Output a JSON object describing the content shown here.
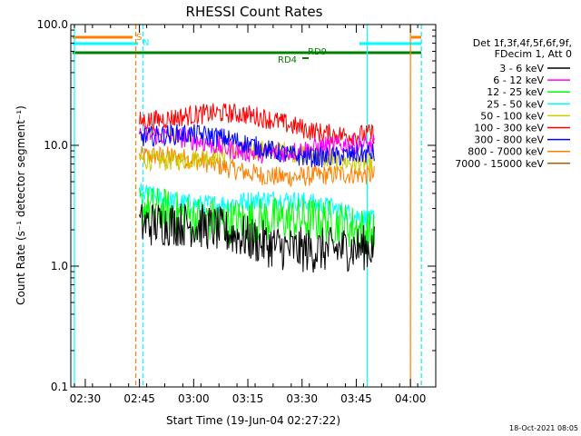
{
  "chart_data": {
    "type": "line",
    "title": "RHESSI Count Rates",
    "xlabel": "Start Time (19-Jun-04 02:27:22)",
    "ylabel": "Count Rate (s⁻¹ detector segment⁻¹)",
    "y_scale": "log",
    "ylim": [
      0.1,
      100.0
    ],
    "y_ticks": [
      "0.1",
      "1.0",
      "10.0",
      "100.0"
    ],
    "x_range_minutes_after_0227": [
      -1,
      100
    ],
    "x_ticks": [
      {
        "label": "02:30",
        "m": 3
      },
      {
        "label": "02:45",
        "m": 18
      },
      {
        "label": "03:00",
        "m": 33
      },
      {
        "label": "03:15",
        "m": 48
      },
      {
        "label": "03:30",
        "m": 63
      },
      {
        "label": "03:45",
        "m": 78
      },
      {
        "label": "04:00",
        "m": 93
      }
    ],
    "legend_header": [
      "Det 1f,3f,4f,5f,6f,9f,",
      "FDecim 1, Att 0"
    ],
    "legend_placement": "right",
    "data_window": {
      "start": "02:45",
      "end": "03:50"
    },
    "series": [
      {
        "name": "3 - 6 keV",
        "color": "#000000",
        "start": 2.2,
        "mid": 1.7,
        "end": 1.3
      },
      {
        "name": "6 - 12 keV",
        "color": "#ff00ff",
        "start": 11.0,
        "mid": 9.8,
        "end": 9.0
      },
      {
        "name": "12 - 25 keV",
        "color": "#00ff00",
        "start": 2.8,
        "mid": 2.6,
        "end": 1.8
      },
      {
        "name": "25 - 50 keV",
        "color": "#00ffff",
        "start": 4.0,
        "mid": 3.4,
        "end": 2.6
      },
      {
        "name": "50 - 100 keV",
        "color": "#cccc00",
        "start": 8.5,
        "mid": 8.2,
        "end": 8.0
      },
      {
        "name": "100 - 300 keV",
        "color": "#ff0000",
        "start": 18.0,
        "mid": 16.0,
        "end": 13.0
      },
      {
        "name": "300 - 800 keV",
        "color": "#0000ff",
        "start": 12.0,
        "mid": 10.0,
        "end": 8.0
      },
      {
        "name": "800 - 7000 keV",
        "color": "#ff8000",
        "start": 7.5,
        "mid": 6.5,
        "end": 5.0
      },
      {
        "name": "7000 - 15000 keV",
        "color": "#a06000",
        "start": null,
        "mid": null,
        "end": null
      }
    ],
    "annotations": [
      {
        "text": "S",
        "color": "#ff8000"
      },
      {
        "text": "N",
        "color": "#00ffff"
      },
      {
        "text": "RD9",
        "color": "#008000"
      },
      {
        "text": "RD4",
        "color": "#008000"
      }
    ],
    "vertical_lines": [
      {
        "color": "#00ffff",
        "style": "solid",
        "time": "02:27"
      },
      {
        "color": "#ff8000",
        "style": "dashed",
        "time": "02:44"
      },
      {
        "color": "#00ffff",
        "style": "dashed",
        "time": "02:46"
      },
      {
        "color": "#00ffff",
        "style": "solid",
        "time": "03:48"
      },
      {
        "color": "#ff8000",
        "style": "solid",
        "time": "04:00"
      },
      {
        "color": "#ff8000",
        "style": "dashed",
        "time": "04:03"
      },
      {
        "color": "#00ffff",
        "style": "dashed",
        "time": "04:03"
      }
    ],
    "grid": false,
    "footer": "18-Oct-2021 08:05"
  }
}
